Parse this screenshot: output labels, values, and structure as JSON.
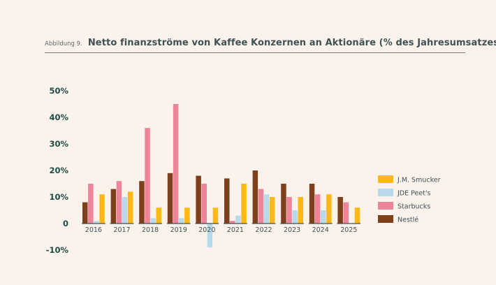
{
  "figure_label": "Abbildung 9.",
  "title": "Netto finanzströme von Kaffee Konzernen an Aktionäre (% des Jahresumsatzes)",
  "colors": {
    "background": "#fcf2ec",
    "axis": "#3e5155"
  },
  "chart_data": {
    "type": "bar",
    "title": "Netto finanzströme von Kaffee Konzernen an Aktionäre (% des Jahresumsatzes)",
    "xlabel": "",
    "ylabel": "",
    "categories": [
      "2016",
      "2017",
      "2018",
      "2019",
      "2020",
      "2021",
      "2022",
      "2023",
      "2024",
      "2025"
    ],
    "series": [
      {
        "name": "Nestlé",
        "color": "#7e3f1c",
        "values": [
          8,
          13,
          16,
          19,
          18,
          17,
          20,
          15,
          15,
          10
        ]
      },
      {
        "name": "Starbucks",
        "color": "#ee8497",
        "values": [
          15,
          16,
          36,
          45,
          15,
          1,
          13,
          10,
          11,
          8
        ]
      },
      {
        "name": "JDE Peet's",
        "color": "#b7d9ea",
        "values": [
          1,
          10,
          2,
          2,
          -9,
          3,
          11,
          5,
          5,
          0
        ]
      },
      {
        "name": "J.M. Smucker",
        "color": "#fdb813",
        "values": [
          11,
          12,
          6,
          6,
          6,
          15,
          10,
          10,
          11,
          6
        ]
      }
    ],
    "legend_order": [
      "J.M. Smucker",
      "JDE Peet's",
      "Starbucks",
      "Nestlé"
    ],
    "legend_position": "right",
    "ylim": [
      -10,
      50
    ],
    "yticks": [
      -10,
      0,
      10,
      20,
      30,
      40,
      50
    ],
    "ytick_labels": [
      "-10%",
      "0",
      "10%",
      "20%",
      "30%",
      "40%",
      "50%"
    ],
    "grid": false
  }
}
